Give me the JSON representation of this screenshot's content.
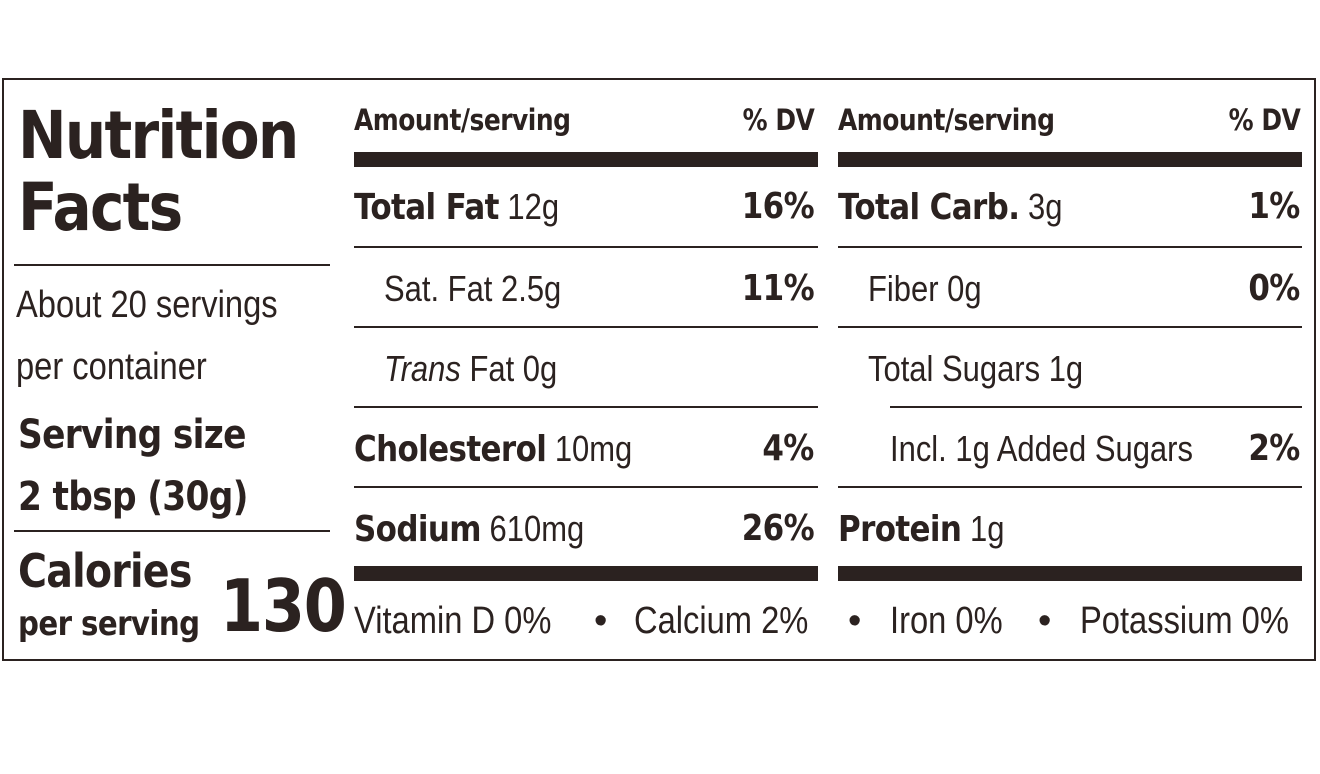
{
  "title": "Nutrition Facts",
  "servings": {
    "per_container": "About 20 servings per container",
    "size_label": "Serving size",
    "size_value": "2 tbsp (30g)"
  },
  "calories": {
    "label": "Calories",
    "sub_label": "per serving",
    "value": "130"
  },
  "columns": {
    "left_header": "Amount/serving",
    "left_dv": "% DV",
    "right_header": "Amount/serving",
    "right_dv": "% DV"
  },
  "left_rows": [
    {
      "label": "Total Fat",
      "amount": "12g",
      "dv": "16%"
    },
    {
      "label": "Sat. Fat 2.5g",
      "amount": "",
      "dv": "11%"
    },
    {
      "label": "Trans",
      "amount": "Fat 0g",
      "dv": ""
    },
    {
      "label": "Cholesterol",
      "amount": "10mg",
      "dv": "4%"
    },
    {
      "label": "Sodium",
      "amount": "610mg",
      "dv": "26%"
    }
  ],
  "right_rows": [
    {
      "label": "Total Carb.",
      "amount": "3g",
      "dv": "1%"
    },
    {
      "label": "Fiber 0g",
      "amount": "",
      "dv": "0%"
    },
    {
      "label": "Total Sugars 1g",
      "amount": "",
      "dv": ""
    },
    {
      "label": "Incl. 1g Added Sugars",
      "amount": "",
      "dv": "2%"
    },
    {
      "label": "Protein",
      "amount": "1g",
      "dv": ""
    }
  ],
  "vitamins": {
    "vitamin_d": "Vitamin D 0%",
    "sep1": "•",
    "calcium": "Calcium 2%",
    "sep2": "•",
    "iron": "Iron 0%",
    "sep3": "•",
    "potassium": "Potassium 0%"
  },
  "colors": {
    "ink": "#2b2220",
    "background": "#ffffff"
  }
}
